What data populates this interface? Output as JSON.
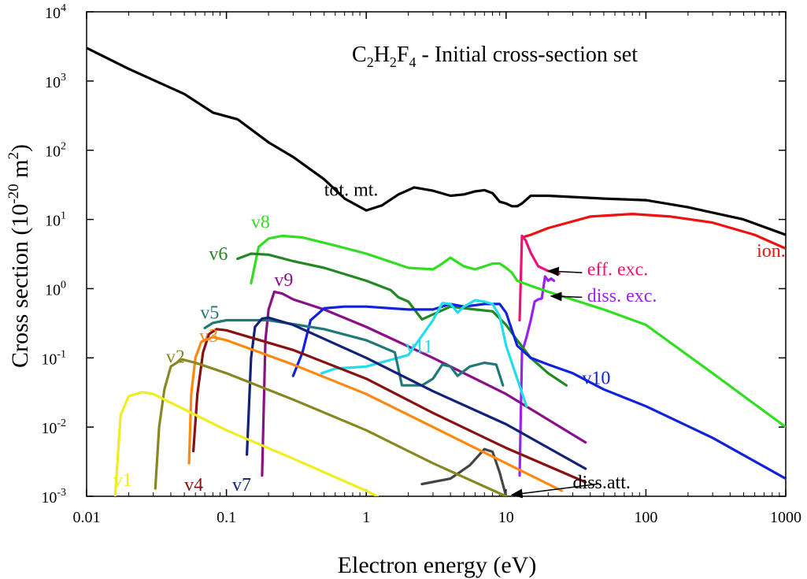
{
  "chart_data": {
    "type": "line",
    "title": {
      "base": "C",
      "s1": "2",
      "mid": "H",
      "s2": "2",
      "mid2": "F",
      "s3": "4",
      "rest": " - Initial cross-section set"
    },
    "xlabel": "Electron energy (eV)",
    "ylabel": {
      "main": "Cross section (10",
      "exp": "-20",
      "unit": " m",
      "unit_exp": "2",
      "close": ")"
    },
    "x_scale": "log",
    "y_scale": "log",
    "xlim": [
      0.01,
      1000
    ],
    "ylim": [
      0.001,
      10000
    ],
    "grid": false,
    "x_ticks": [
      {
        "value": 0.01,
        "label": "0.01"
      },
      {
        "value": 0.1,
        "label": "0.1"
      },
      {
        "value": 1,
        "label": "1"
      },
      {
        "value": 10,
        "label": "10"
      },
      {
        "value": 100,
        "label": "100"
      },
      {
        "value": 1000,
        "label": "1000"
      }
    ],
    "y_ticks": [
      {
        "value": 0.001,
        "base": "10",
        "exp": "-3"
      },
      {
        "value": 0.01,
        "base": "10",
        "exp": "-2"
      },
      {
        "value": 0.1,
        "base": "10",
        "exp": "-1"
      },
      {
        "value": 1,
        "base": "10",
        "exp": "0"
      },
      {
        "value": 10,
        "base": "10",
        "exp": "1"
      },
      {
        "value": 100,
        "base": "10",
        "exp": "2"
      },
      {
        "value": 1000,
        "base": "10",
        "exp": "3"
      },
      {
        "value": 10000,
        "base": "10",
        "exp": "4"
      }
    ],
    "series": [
      {
        "name": "tot. mt.",
        "color": "#000000",
        "label_at": [
          0.5,
          22
        ],
        "points": [
          [
            0.01,
            3000
          ],
          [
            0.02,
            1500
          ],
          [
            0.05,
            650
          ],
          [
            0.08,
            350
          ],
          [
            0.12,
            280
          ],
          [
            0.2,
            130
          ],
          [
            0.3,
            80
          ],
          [
            0.5,
            38
          ],
          [
            0.7,
            20
          ],
          [
            1,
            13.5
          ],
          [
            1.3,
            16
          ],
          [
            1.7,
            23
          ],
          [
            2.2,
            29
          ],
          [
            3,
            26
          ],
          [
            4,
            22
          ],
          [
            5,
            23
          ],
          [
            6,
            25.5
          ],
          [
            7,
            26.5
          ],
          [
            8,
            24
          ],
          [
            9,
            18
          ],
          [
            10,
            17
          ],
          [
            11,
            15.5
          ],
          [
            12,
            15.5
          ],
          [
            13,
            17
          ],
          [
            15,
            22
          ],
          [
            20,
            22
          ],
          [
            50,
            20
          ],
          [
            100,
            19
          ],
          [
            200,
            15
          ],
          [
            500,
            10
          ],
          [
            1000,
            6
          ]
        ]
      },
      {
        "name": "ion.",
        "color": "#ee1111",
        "label_at": [
          620,
          2.9
        ],
        "points": [
          [
            13,
            5.5
          ],
          [
            15,
            6
          ],
          [
            20,
            7.5
          ],
          [
            40,
            11
          ],
          [
            80,
            12
          ],
          [
            150,
            11
          ],
          [
            300,
            9
          ],
          [
            600,
            6
          ],
          [
            1000,
            3.8
          ]
        ]
      },
      {
        "name": "eff. exc.",
        "color": "#ee1177",
        "label_at": [
          38,
          1.55
        ],
        "points": [
          [
            12.5,
            0.35
          ],
          [
            13,
            5.8
          ],
          [
            13.8,
            5
          ],
          [
            15,
            3.3
          ],
          [
            17,
            2.1
          ],
          [
            20,
            1.8
          ],
          [
            24,
            1.65
          ]
        ]
      },
      {
        "name": "diss. exc.",
        "color": "#9922ee",
        "label_at": [
          38,
          0.65
        ],
        "points": [
          [
            12.5,
            0.002
          ],
          [
            13,
            0.12
          ],
          [
            14,
            0.2
          ],
          [
            15,
            0.35
          ],
          [
            16,
            0.65
          ],
          [
            17,
            0.7
          ],
          [
            18,
            0.72
          ],
          [
            19,
            1.5
          ],
          [
            20,
            1.3
          ],
          [
            21,
            1.4
          ],
          [
            22,
            1.3
          ]
        ]
      },
      {
        "name": "diss.att.",
        "color": "#444444",
        "label_at": [
          30,
          0.0013
        ],
        "points": [
          [
            2.5,
            0.0015
          ],
          [
            4,
            0.0018
          ],
          [
            5.5,
            0.0028
          ],
          [
            7,
            0.0048
          ],
          [
            8,
            0.0044
          ],
          [
            9,
            0.0022
          ],
          [
            10,
            0.001
          ]
        ]
      },
      {
        "name": "v8",
        "color": "#33dd22",
        "label_at": [
          0.15,
          7.5
        ],
        "points": [
          [
            0.15,
            1.2
          ],
          [
            0.17,
            4
          ],
          [
            0.2,
            5.3
          ],
          [
            0.25,
            5.8
          ],
          [
            0.35,
            5.5
          ],
          [
            0.6,
            4.2
          ],
          [
            1,
            3.2
          ],
          [
            2,
            2
          ],
          [
            3,
            1.9
          ],
          [
            3.5,
            2.3
          ],
          [
            4,
            2.8
          ],
          [
            4.5,
            2.4
          ],
          [
            5,
            2.1
          ],
          [
            6,
            1.9
          ],
          [
            7,
            2.1
          ],
          [
            8,
            2.3
          ],
          [
            9,
            2.3
          ],
          [
            10,
            2
          ],
          [
            11,
            1.7
          ],
          [
            12,
            1.3
          ],
          [
            15,
            1.1
          ],
          [
            20,
            0.9
          ],
          [
            50,
            0.5
          ],
          [
            100,
            0.3
          ],
          [
            300,
            0.06
          ],
          [
            1000,
            0.01
          ]
        ]
      },
      {
        "name": "v6",
        "color": "#228822",
        "label_at": [
          0.075,
          2.6
        ],
        "points": [
          [
            0.12,
            2.7
          ],
          [
            0.15,
            3.2
          ],
          [
            0.2,
            3.1
          ],
          [
            0.3,
            2.5
          ],
          [
            0.5,
            2
          ],
          [
            1,
            1.3
          ],
          [
            1.5,
            0.95
          ],
          [
            1.7,
            0.75
          ],
          [
            2,
            0.65
          ],
          [
            2.5,
            0.36
          ],
          [
            4,
            0.55
          ],
          [
            6,
            0.5
          ],
          [
            8,
            0.47
          ],
          [
            10,
            0.3
          ],
          [
            12,
            0.18
          ],
          [
            15,
            0.1
          ],
          [
            20,
            0.06
          ],
          [
            27,
            0.04
          ]
        ]
      },
      {
        "name": "v9",
        "color": "#881188",
        "label_at": [
          0.22,
          1.1
        ],
        "points": [
          [
            0.18,
            0.002
          ],
          [
            0.19,
            0.18
          ],
          [
            0.2,
            0.5
          ],
          [
            0.22,
            0.9
          ],
          [
            0.25,
            0.85
          ],
          [
            0.3,
            0.7
          ],
          [
            0.5,
            0.5
          ],
          [
            1,
            0.28
          ],
          [
            3,
            0.1
          ],
          [
            10,
            0.03
          ],
          [
            37,
            0.006
          ]
        ]
      },
      {
        "name": "v10",
        "color": "#1122dd",
        "label_at": [
          35,
          0.042
        ],
        "points": [
          [
            0.3,
            0.055
          ],
          [
            0.35,
            0.12
          ],
          [
            0.4,
            0.35
          ],
          [
            0.5,
            0.52
          ],
          [
            0.7,
            0.55
          ],
          [
            1,
            0.55
          ],
          [
            2,
            0.5
          ],
          [
            3,
            0.5
          ],
          [
            4,
            0.6
          ],
          [
            5,
            0.55
          ],
          [
            7,
            0.6
          ],
          [
            9,
            0.6
          ],
          [
            10,
            0.45
          ],
          [
            12,
            0.15
          ],
          [
            15,
            0.1
          ],
          [
            20,
            0.08
          ],
          [
            30,
            0.06
          ],
          [
            50,
            0.035
          ],
          [
            100,
            0.02
          ],
          [
            300,
            0.007
          ],
          [
            1000,
            0.0018
          ]
        ]
      },
      {
        "name": "v11",
        "color": "#22ddee",
        "label_at": [
          1.9,
          0.12
        ],
        "points": [
          [
            0.48,
            0.06
          ],
          [
            0.6,
            0.07
          ],
          [
            1,
            0.075
          ],
          [
            2,
            0.11
          ],
          [
            3,
            0.35
          ],
          [
            3.5,
            0.62
          ],
          [
            4,
            0.6
          ],
          [
            4.5,
            0.45
          ],
          [
            5,
            0.55
          ],
          [
            6,
            0.68
          ],
          [
            7,
            0.65
          ],
          [
            8,
            0.6
          ],
          [
            9,
            0.4
          ],
          [
            10,
            0.15
          ],
          [
            12,
            0.05
          ],
          [
            14,
            0.02
          ]
        ]
      },
      {
        "name": "v5",
        "color": "#227777",
        "label_at": [
          0.065,
          0.37
        ],
        "points": [
          [
            0.07,
            0.27
          ],
          [
            0.08,
            0.32
          ],
          [
            0.1,
            0.35
          ],
          [
            0.2,
            0.35
          ],
          [
            0.5,
            0.26
          ],
          [
            1,
            0.18
          ],
          [
            1.6,
            0.12
          ],
          [
            1.8,
            0.04
          ],
          [
            2.5,
            0.04
          ],
          [
            3,
            0.05
          ],
          [
            3.5,
            0.08
          ],
          [
            4,
            0.075
          ],
          [
            4.5,
            0.055
          ],
          [
            5.5,
            0.075
          ],
          [
            7,
            0.085
          ],
          [
            8.5,
            0.08
          ],
          [
            9.5,
            0.04
          ]
        ]
      },
      {
        "name": "v7",
        "color": "#112277",
        "label_at": [
          0.11,
          0.0012
        ],
        "points": [
          [
            0.14,
            0.004
          ],
          [
            0.15,
            0.1
          ],
          [
            0.16,
            0.28
          ],
          [
            0.18,
            0.37
          ],
          [
            0.2,
            0.38
          ],
          [
            0.3,
            0.3
          ],
          [
            1,
            0.1
          ],
          [
            3,
            0.033
          ],
          [
            10,
            0.011
          ],
          [
            37,
            0.0025
          ]
        ]
      },
      {
        "name": "v4",
        "color": "#881111",
        "label_at": [
          0.05,
          0.0012
        ],
        "points": [
          [
            0.058,
            0.0045
          ],
          [
            0.062,
            0.03
          ],
          [
            0.068,
            0.12
          ],
          [
            0.075,
            0.22
          ],
          [
            0.085,
            0.26
          ],
          [
            0.1,
            0.25
          ],
          [
            0.3,
            0.13
          ],
          [
            1,
            0.05
          ],
          [
            3,
            0.016
          ],
          [
            10,
            0.005
          ],
          [
            37,
            0.0016
          ]
        ]
      },
      {
        "name": "v3",
        "color": "#ff8811",
        "label_at": [
          0.064,
          0.17
        ],
        "points": [
          [
            0.054,
            0.003
          ],
          [
            0.056,
            0.03
          ],
          [
            0.06,
            0.1
          ],
          [
            0.066,
            0.17
          ],
          [
            0.08,
            0.2
          ],
          [
            0.1,
            0.18
          ],
          [
            0.3,
            0.08
          ],
          [
            1,
            0.03
          ],
          [
            3,
            0.01
          ],
          [
            10,
            0.003
          ],
          [
            25,
            0.0012
          ]
        ]
      },
      {
        "name": "v2",
        "color": "#888822",
        "label_at": [
          0.037,
          0.085
        ],
        "points": [
          [
            0.031,
            0.0013
          ],
          [
            0.033,
            0.01
          ],
          [
            0.036,
            0.035
          ],
          [
            0.04,
            0.075
          ],
          [
            0.048,
            0.095
          ],
          [
            0.06,
            0.085
          ],
          [
            0.1,
            0.06
          ],
          [
            0.3,
            0.025
          ],
          [
            1,
            0.009
          ],
          [
            3,
            0.003
          ],
          [
            10,
            0.001
          ]
        ]
      },
      {
        "name": "v1",
        "color": "#eeee22",
        "label_at": [
          0.0155,
          0.0014
        ],
        "points": [
          [
            0.016,
            0.001
          ],
          [
            0.0175,
            0.015
          ],
          [
            0.02,
            0.028
          ],
          [
            0.025,
            0.032
          ],
          [
            0.03,
            0.03
          ],
          [
            0.05,
            0.018
          ],
          [
            0.1,
            0.009
          ],
          [
            0.3,
            0.0035
          ],
          [
            1,
            0.0012
          ],
          [
            1.2,
            0.001
          ]
        ]
      }
    ],
    "arrows": [
      {
        "from": [
          35,
          1.7
        ],
        "to": [
          20,
          1.8
        ]
      },
      {
        "from": [
          35,
          0.75
        ],
        "to": [
          21,
          0.78
        ]
      },
      {
        "from": [
          45,
          0.0015
        ],
        "to": [
          11,
          0.00105
        ]
      }
    ]
  }
}
